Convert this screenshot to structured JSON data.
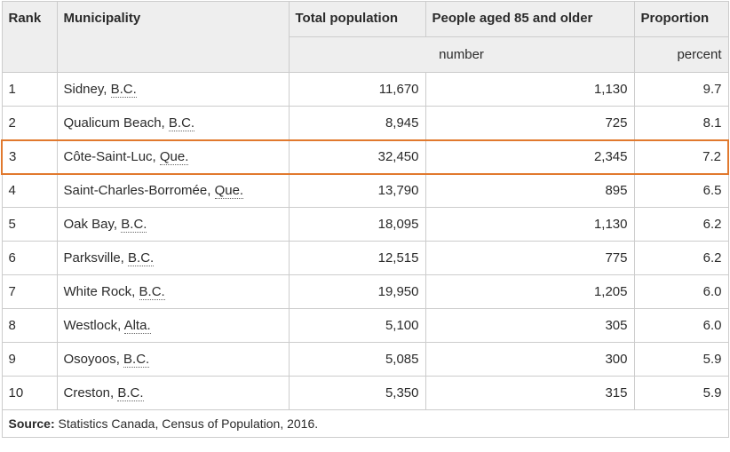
{
  "chart_data": {
    "type": "table",
    "columns": [
      "Rank",
      "Municipality",
      "Total population",
      "People aged 85 and older",
      "Proportion"
    ],
    "units_row": {
      "number": "number",
      "percent": "percent"
    },
    "rows": [
      {
        "rank": "1",
        "city": "Sidney,",
        "abbr": "B.C.",
        "total_population": "11,670",
        "aged_85_and_older": "1,130",
        "proportion": "9.7",
        "highlighted": false
      },
      {
        "rank": "2",
        "city": "Qualicum Beach,",
        "abbr": "B.C.",
        "total_population": "8,945",
        "aged_85_and_older": "725",
        "proportion": "8.1",
        "highlighted": false
      },
      {
        "rank": "3",
        "city": "Côte-Saint-Luc,",
        "abbr": "Que.",
        "total_population": "32,450",
        "aged_85_and_older": "2,345",
        "proportion": "7.2",
        "highlighted": true
      },
      {
        "rank": "4",
        "city": "Saint-Charles-Borromée,",
        "abbr": "Que.",
        "total_population": "13,790",
        "aged_85_and_older": "895",
        "proportion": "6.5",
        "highlighted": false
      },
      {
        "rank": "5",
        "city": "Oak Bay,",
        "abbr": "B.C.",
        "total_population": "18,095",
        "aged_85_and_older": "1,130",
        "proportion": "6.2",
        "highlighted": false
      },
      {
        "rank": "6",
        "city": "Parksville,",
        "abbr": "B.C.",
        "total_population": "12,515",
        "aged_85_and_older": "775",
        "proportion": "6.2",
        "highlighted": false
      },
      {
        "rank": "7",
        "city": "White Rock,",
        "abbr": "B.C.",
        "total_population": "19,950",
        "aged_85_and_older": "1,205",
        "proportion": "6.0",
        "highlighted": false
      },
      {
        "rank": "8",
        "city": "Westlock,",
        "abbr": "Alta.",
        "total_population": "5,100",
        "aged_85_and_older": "305",
        "proportion": "6.0",
        "highlighted": false
      },
      {
        "rank": "9",
        "city": "Osoyoos,",
        "abbr": "B.C.",
        "total_population": "5,085",
        "aged_85_and_older": "300",
        "proportion": "5.9",
        "highlighted": false
      },
      {
        "rank": "10",
        "city": "Creston,",
        "abbr": "B.C.",
        "total_population": "5,350",
        "aged_85_and_older": "315",
        "proportion": "5.9",
        "highlighted": false
      }
    ],
    "source": {
      "label": "Source:",
      "text": "Statistics Canada, Census of Population, 2016."
    }
  },
  "colors": {
    "highlight_border": "#e1792e",
    "header_background": "#eeeeee",
    "table_border": "#cccccc"
  }
}
